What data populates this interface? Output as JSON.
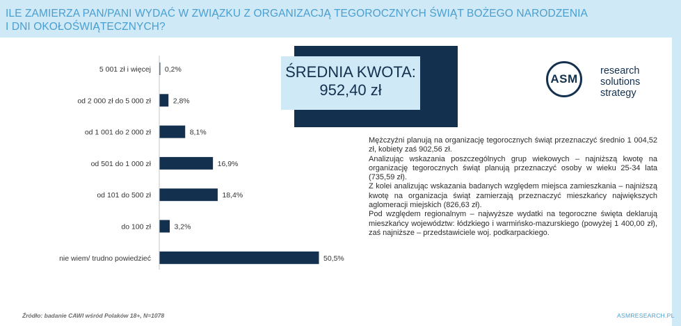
{
  "header": {
    "title_line1": "ILE ZAMIERZA PAN/PANI WYDAĆ W ZWIĄZKU Z ORGANIZACJĄ TEGOROCZNYCH ŚWIĄT BOŻEGO NARODZENIA",
    "title_line2": "I DNI OKOŁOŚWIĄTECZNYCH?"
  },
  "kpi": {
    "title": "ŚREDNIA KWOTA:",
    "value": "952,40 zł"
  },
  "logo": {
    "mark": "ASM",
    "line1": "research",
    "line2": "solutions",
    "line3": "strategy"
  },
  "description": {
    "paragraphs": [
      "Mężczyźni planują na organizację tegorocznych świąt przeznaczyć średnio 1 004,52 zł, kobiety zaś 902,56 zł.",
      "Analizując wskazania poszczególnych grup wiekowych – najniższą kwotę na organizację tegorocznych świąt planują przeznaczyć osoby w wieku 25-34 lata (735,59 zł).",
      "Z kolei analizując wskazania badanych względem miejsca zamieszkania – najniższą kwotę na organizacja świąt zamierzają przeznaczyć mieszkańcy największych aglomeracji miejskich (826,63 zł).",
      "Pod względem regionalnym – najwyższe wydatki na tegoroczne święta deklarują mieszkańcy województw: łódzkiego i warmińsko-mazurskiego (powyżej 1 400,00 zł), zaś najniższe – przedstawiciele woj. podkarpackiego."
    ]
  },
  "footer": {
    "source": "Źródło: badanie CAWI wśród Polaków 18+, N=1078",
    "site": "ASMRESEARCH.PL"
  },
  "colors": {
    "bar": "#14304f",
    "accent": "#4a9fd0",
    "header_bg": "#cfe9f6"
  },
  "chart_data": {
    "type": "bar",
    "orientation": "horizontal",
    "categories": [
      "5 001 zł i więcej",
      "od 2 000 zł do 5 000 zł",
      "od 1 001 do 2 000 zł",
      "od 501 do 1 000 zł",
      "od 101 do 500 zł",
      "do 100 zł",
      "nie wiem/ trudno powiedzieć"
    ],
    "values": [
      0.2,
      2.8,
      8.1,
      16.9,
      18.4,
      3.2,
      50.5
    ],
    "labels": [
      "0,2%",
      "2,8%",
      "8,1%",
      "16,9%",
      "18,4%",
      "3,2%",
      "50,5%"
    ],
    "unit": "%",
    "xlim": [
      0,
      50.5
    ],
    "grid": false,
    "legend": "none"
  }
}
